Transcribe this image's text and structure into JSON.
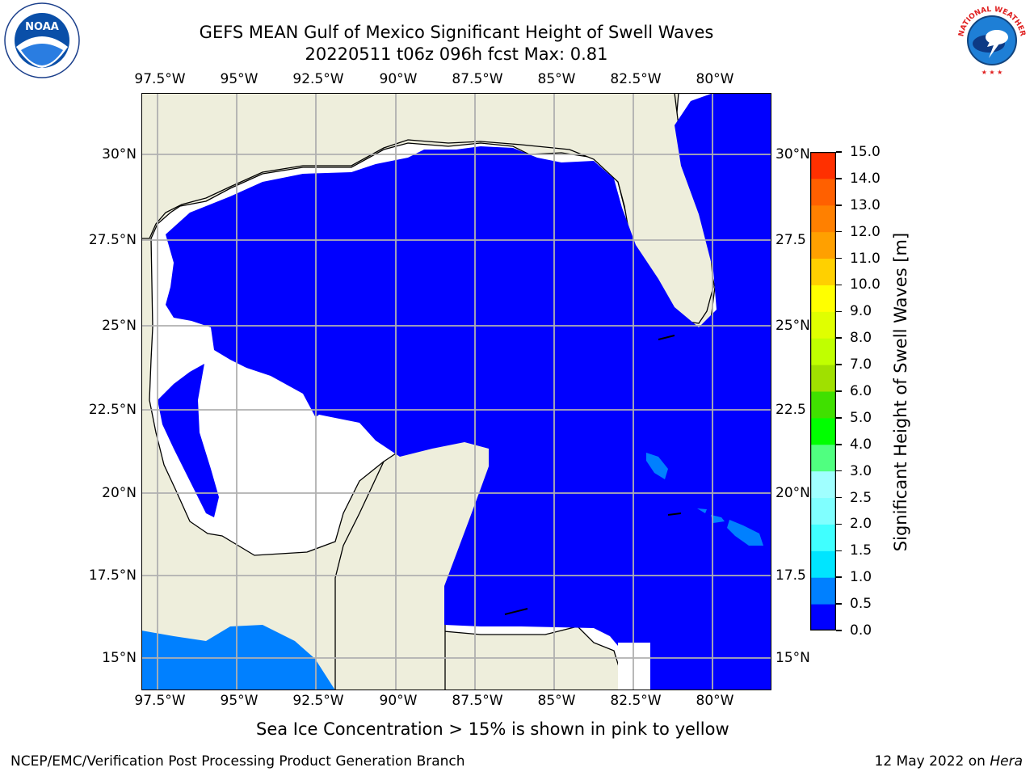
{
  "header": {
    "title_line1": "GEFS MEAN Gulf of Mexico Significant Height of Swell Waves",
    "title_line2": "20220511 t06z 096h fcst   Max: 0.81"
  },
  "map": {
    "lon_labels": [
      "97.5°W",
      "95°W",
      "92.5°W",
      "90°W",
      "87.5°W",
      "85°W",
      "82.5°W",
      "80°W"
    ],
    "lat_labels": [
      "30°N",
      "27.5°N",
      "25°N",
      "22.5°N",
      "20°N",
      "17.5°N",
      "15°N"
    ],
    "right_lat_labels": [
      "30°N",
      "27.5",
      "25°N",
      "22.5",
      "20°N",
      "17.5",
      "15°N"
    ],
    "land_color": "#eeeedc",
    "ocean_low_color": "#0000ff"
  },
  "colorbar": {
    "label": "Significant Height of Swell Waves [m]",
    "ticks": [
      "0.0",
      "0.5",
      "1.0",
      "1.5",
      "2.0",
      "2.5",
      "3.0",
      "4.0",
      "5.0",
      "6.0",
      "7.0",
      "8.0",
      "9.0",
      "10.0",
      "11.0",
      "12.0",
      "13.0",
      "14.0",
      "15.0"
    ],
    "colors": [
      "#0000ff",
      "#0080ff",
      "#00e5ff",
      "#40ffff",
      "#80ffff",
      "#a0ffff",
      "#50ff80",
      "#00ff00",
      "#40e000",
      "#a0e000",
      "#c0ff00",
      "#e0ff00",
      "#ffff00",
      "#ffd000",
      "#ffa000",
      "#ff8000",
      "#ff6000",
      "#ff3000",
      "#ff0000"
    ]
  },
  "note": "Sea Ice Concentration > 15% is shown in pink to yellow",
  "footer": {
    "org": "NCEP/EMC/Verification Post Processing Product Generation Branch",
    "date": "12 May 2022 on",
    "host": "Hera"
  },
  "logos": {
    "left": "noa-logo",
    "right": "national-weather-service-logo",
    "noaa_text": "NOAA",
    "nws_text": "NATIONAL WEATHER SERVICE"
  }
}
